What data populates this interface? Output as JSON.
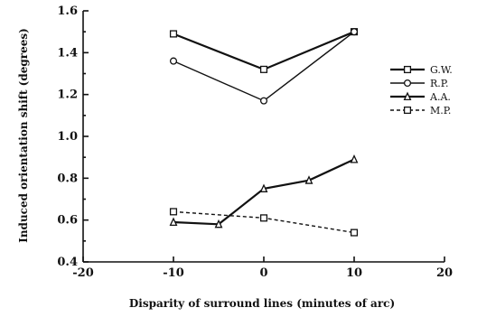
{
  "chart_data": {
    "type": "line",
    "title": "",
    "xlabel": "Disparity of surround lines  (minutes of arc)",
    "ylabel": "Induced   orientation   shift   (degrees)",
    "xlim": [
      -20,
      20
    ],
    "ylim": [
      0.4,
      1.6
    ],
    "xticks": [
      -20,
      -10,
      0,
      10,
      20
    ],
    "xtick_labels": [
      "-20",
      "-10",
      "0",
      "10",
      "20"
    ],
    "yticks": [
      0.4,
      0.6,
      0.8,
      1.0,
      1.2,
      1.4,
      1.6
    ],
    "ytick_labels": [
      "0.4",
      "0.6",
      "0.8",
      "1.0",
      "1.2",
      "1.4",
      "1.6"
    ],
    "grid": false,
    "legend_position": "right",
    "series": [
      {
        "name": "G.W.",
        "marker": "square",
        "dash": "solid",
        "weight": "heavy",
        "x": [
          -10,
          0,
          10
        ],
        "y": [
          1.49,
          1.32,
          1.5
        ]
      },
      {
        "name": "R.P.",
        "marker": "circle",
        "dash": "solid",
        "weight": "light",
        "x": [
          -10,
          0,
          10
        ],
        "y": [
          1.36,
          1.17,
          1.5
        ]
      },
      {
        "name": "A.A.",
        "marker": "triangle",
        "dash": "solid",
        "weight": "heavy",
        "x": [
          -10,
          -5,
          0,
          5,
          10
        ],
        "y": [
          0.59,
          0.58,
          0.75,
          0.79,
          0.89
        ]
      },
      {
        "name": "M.P.",
        "marker": "square",
        "dash": "dashed",
        "weight": "light",
        "x": [
          -10,
          0,
          10
        ],
        "y": [
          0.64,
          0.61,
          0.54
        ]
      }
    ]
  }
}
